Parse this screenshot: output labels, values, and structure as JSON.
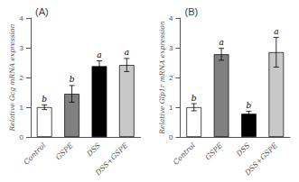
{
  "chart_data": [
    {
      "type": "bar",
      "title": "(A)",
      "ylabel": "Relative Gcg mRNA expression",
      "categories": [
        "Control",
        "GSPE",
        "DSS",
        "DSS+GSPE"
      ],
      "values": [
        1.0,
        1.45,
        2.38,
        2.42
      ],
      "errors": [
        0.08,
        0.28,
        0.18,
        0.22
      ],
      "colors": [
        "#ffffff",
        "#808080",
        "#000000",
        "#c8c8c8"
      ],
      "annotations": [
        "b",
        "b",
        "a",
        "a"
      ],
      "ylim": [
        0,
        4
      ],
      "yticks": [
        0,
        1,
        2,
        3,
        4
      ],
      "grid": false
    },
    {
      "type": "bar",
      "title": "(B)",
      "ylabel": "Relative Glp1r mRNA expression",
      "categories": [
        "Control",
        "GSPE",
        "DSS",
        "DSS+GSPE"
      ],
      "values": [
        1.0,
        2.78,
        0.78,
        2.85
      ],
      "errors": [
        0.12,
        0.2,
        0.08,
        0.5
      ],
      "colors": [
        "#ffffff",
        "#808080",
        "#000000",
        "#c8c8c8"
      ],
      "annotations": [
        "b",
        "a",
        "b",
        "a"
      ],
      "ylim": [
        0,
        4
      ],
      "yticks": [
        0,
        1,
        2,
        3,
        4
      ],
      "grid": false
    }
  ]
}
